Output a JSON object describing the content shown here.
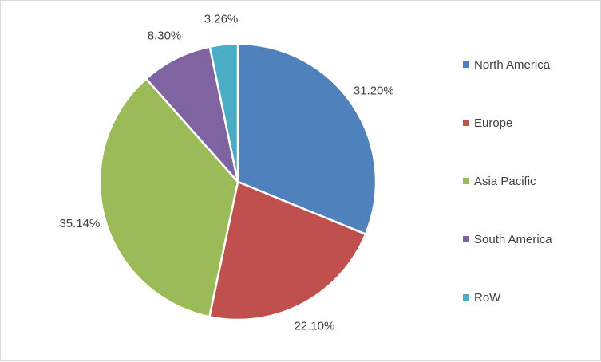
{
  "chart_data": {
    "type": "pie",
    "title": "",
    "categories": [
      "North America",
      "Europe",
      "Asia Pacific",
      "South America",
      "RoW"
    ],
    "values": [
      31.2,
      22.1,
      35.14,
      8.3,
      3.26
    ],
    "value_labels": [
      "31.20%",
      "22.10%",
      "35.14%",
      "8.30%",
      "3.26%"
    ],
    "colors": [
      "#4f81bd",
      "#c0504d",
      "#9bbb59",
      "#8064a2",
      "#4bacc6"
    ],
    "start_angle_deg": 0,
    "direction": "clockwise",
    "legend": "right"
  }
}
